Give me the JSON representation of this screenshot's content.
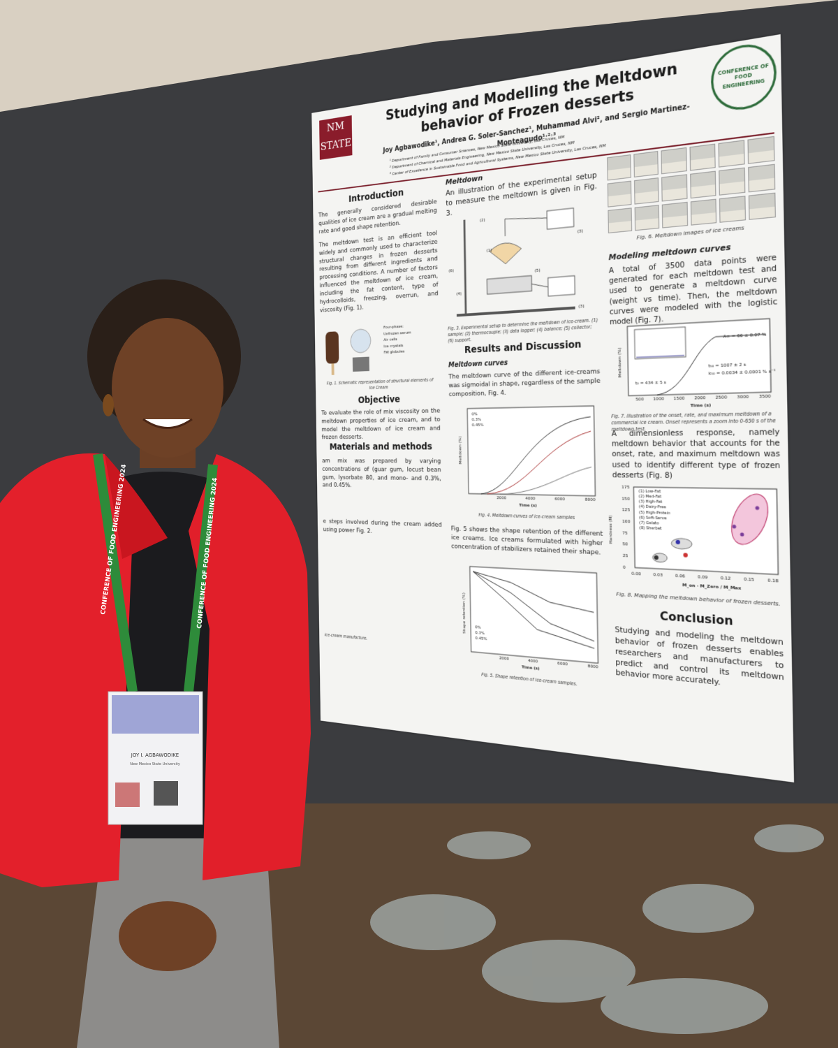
{
  "poster": {
    "logo": "NM STATE",
    "conference_logo": "CONFERENCE OF FOOD ENGINEERING",
    "title": "Studying and Modelling the Meltdown behavior of Frozen desserts",
    "authors": "Joy Agbawodike¹, Andrea G. Soler-Sanchez¹, Muhammad Alvi², and Sergio Martinez-Monteagudo¹˒²˒³",
    "affiliations": [
      "¹ Department of Family and Consumer Sciences, New Mexico State University, Las Cruces, NM",
      "² Department of Chemical and Materials Engineering, New Mexico State University, Las Cruces, NM",
      "³ Center of Excellence in Sustainable Food and Agricultural Systems, New Mexico State University, Las Cruces, NM"
    ],
    "introduction": {
      "heading": "Introduction",
      "paragraphs": [
        "The generally considered desirable qualities of ice cream are a gradual melting rate and good shape retention.",
        "The meltdown test is an efficient tool widely and commonly used to characterize structural changes in frozen desserts resulting from different ingredients and processing conditions. A number of factors influenced the meltdown of ice cream, including the fat content, type of hydrocolloids, freezing, overrun, and viscosity (Fig. 1)."
      ]
    },
    "fig1": {
      "labels": [
        "Four-phase:",
        "Unfrozen serum",
        "Air cells",
        "Ice crystals",
        "Fat globules"
      ],
      "caption": "Fig. 1. Schematic representation of structural elements of Ice Cream"
    },
    "objective": {
      "heading": "Objective",
      "text": "To evaluate the role of mix viscosity on the meltdown properties of ice cream, and to model the meltdown of ice cream and frozen desserts."
    },
    "methods": {
      "heading": "Materials and methods",
      "text1": "am mix was prepared by varying concentrations of (guar gum, locust bean gum, lysorbate 80, and mono- and 0.3%, and 0.45%.",
      "text2": "e steps involved during the cream added using power Fig. 2.",
      "fig2_caption": "ice-cream manufacture."
    },
    "meltdown": {
      "heading": "Meltdown",
      "text": "An illustration of the experimental setup to measure the meltdown is given in Fig. 3.",
      "fig3_labels": [
        "(1)",
        "(2)",
        "(3)",
        "(4)",
        "(5)",
        "(6)",
        "(3)"
      ],
      "fig3_caption": "Fig. 3. Experimental setup to determine the meltdown of ice-cream. (1) sample; (2) thermocouple; (3) data logger; (4) balance; (5) collector; (6) support."
    },
    "results": {
      "heading": "Results and Discussion",
      "subheading": "Meltdown curves",
      "text": "The meltdown curve of the different ice-creams was sigmoidal in shape, regardless of the sample composition, Fig. 4.",
      "text2": "Fig. 5 shows the shape retention of the different ice creams. Ice creams formulated with higher concentration of stabilizers retained their shape."
    },
    "fig4": {
      "legend": [
        "0%",
        "0.3%",
        "0.45%"
      ],
      "xticks": [
        "2000",
        "4000",
        "6000",
        "8000"
      ],
      "xlabel": "Time (s)",
      "ylabel": "Meltdown (%)",
      "caption": "Fig. 4. Meltdown curves of ice-cream samples"
    },
    "fig5": {
      "legend": [
        "0%",
        "0.3%",
        "0.45%"
      ],
      "xticks": [
        "2000",
        "4000",
        "6000",
        "8000"
      ],
      "xlabel": "Time (s)",
      "ylabel": "Shape retention (%)",
      "caption": "Fig. 5. Shape retention of ice-cream samples."
    },
    "fig6": {
      "caption": "Fig. 6. Meltdown images of ice creams"
    },
    "modeling": {
      "heading": "Modeling meltdown curves",
      "text": "A total of 3500 data points were generated for each meltdown test and used to generate a meltdown curve (weight vs time). Then, the meltdown curves were modeled with the logistic model (Fig. 7)."
    },
    "fig7": {
      "annotations": [
        "A∞ = 66 ± 0.07 %",
        "t₅₀ = 1007 ± 2 s",
        "k₅₀ = 0.0034 ± 0.0001 % s⁻¹",
        "t₀ = 434 ± 5 s"
      ],
      "xticks": [
        "500",
        "1000",
        "1500",
        "2000",
        "2500",
        "3000",
        "3500"
      ],
      "xlabel": "Time (s)",
      "ylabel": "Meltdown (%)",
      "caption": "Fig. 7. Illustration of the onset, rate, and maximum meltdown of a commercial ice cream. Onset represents a zoom into 0-650 s of the meltdown test."
    },
    "dimensionless": {
      "text": "A dimensionless response, namely meltdown behavior that accounts for the onset, rate, and maximum meltdown was used to identify different type of frozen desserts (Fig. 8)"
    },
    "fig8": {
      "legend": [
        "(1) Low-Fat",
        "(2) Med-Fat",
        "(3) High-Fat",
        "(4) Dairy-Free",
        "(5) High-Protein",
        "(6) Soft-Serve",
        "(7) Gelato",
        "(8) Sherbet"
      ],
      "yticks": [
        "175",
        "150",
        "125",
        "100",
        "75",
        "50",
        "25",
        "0"
      ],
      "xticks": [
        "0.00",
        "0.03",
        "0.06",
        "0.09",
        "0.12",
        "0.15",
        "0.18"
      ],
      "ylabel": "Hardness (N)",
      "xlabel": "M_on · M_Zero / M_Max",
      "caption": "Fig. 8. Mapping the meltdown behavior of frozen desserts."
    },
    "conclusion": {
      "heading": "Conclusion",
      "text": "Studying and modeling the meltdown behavior of frozen desserts enables researchers and manufacturers to predict and control its meltdown behavior more accurately."
    }
  },
  "badge": {
    "name": "JOY I. AGBAWODIKE",
    "affiliation": "New Mexico State University"
  },
  "lanyard": "CONFERENCE OF FOOD ENGINEERING 2024"
}
